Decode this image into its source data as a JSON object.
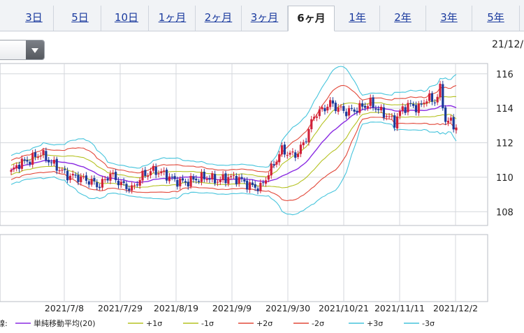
{
  "tabs": [
    {
      "label": "3日",
      "active": false
    },
    {
      "label": "5日",
      "active": false
    },
    {
      "label": "10日",
      "active": false
    },
    {
      "label": "1ヶ月",
      "active": false
    },
    {
      "label": "2ヶ月",
      "active": false
    },
    {
      "label": "3ヶ月",
      "active": false
    },
    {
      "label": "6ヶ月",
      "active": true
    },
    {
      "label": "1年",
      "active": false
    },
    {
      "label": "2年",
      "active": false
    },
    {
      "label": "3年",
      "active": false
    },
    {
      "label": "5年",
      "active": false
    }
  ],
  "header": {
    "date_text": "21/12/"
  },
  "chart_data": {
    "type": "candlestick",
    "ylim": [
      107.2,
      116.6
    ],
    "yticks": [
      108,
      110,
      112,
      114,
      116
    ],
    "x_ticks": [
      "2021/7/8",
      "2021/7/29",
      "2021/8/19",
      "2021/9/9",
      "2021/9/30",
      "2021/10/21",
      "2021/11/11",
      "2021/12/2"
    ],
    "up_color": "#d0213a",
    "down_color": "#1b3a9a",
    "legend": {
      "prefix": "線:",
      "items": [
        {
          "label": "単純移動平均(20)",
          "color": "#8a2be2"
        },
        {
          "label": "+1σ",
          "color": "#b5c222"
        },
        {
          "label": "-1σ",
          "color": "#b5c222"
        },
        {
          "label": "+2σ",
          "color": "#e2483a"
        },
        {
          "label": "-2σ",
          "color": "#e2483a"
        },
        {
          "label": "+3σ",
          "color": "#45c4dc"
        },
        {
          "label": "-3σ",
          "color": "#45c4dc"
        }
      ]
    },
    "close_anchors": [
      [
        0,
        110.3
      ],
      [
        3,
        110.8
      ],
      [
        7,
        111.0
      ],
      [
        11,
        111.4
      ],
      [
        13,
        111.1
      ],
      [
        17,
        110.6
      ],
      [
        21,
        110.1
      ],
      [
        25,
        110.0
      ],
      [
        29,
        109.8
      ],
      [
        33,
        109.5
      ],
      [
        37,
        110.2
      ],
      [
        41,
        109.6
      ],
      [
        45,
        109.3
      ],
      [
        49,
        110.1
      ],
      [
        53,
        110.4
      ],
      [
        57,
        110.2
      ],
      [
        61,
        109.8
      ],
      [
        65,
        109.7
      ],
      [
        69,
        109.9
      ],
      [
        73,
        110.0
      ],
      [
        77,
        109.8
      ],
      [
        81,
        110.0
      ],
      [
        85,
        109.9
      ],
      [
        89,
        109.5
      ],
      [
        93,
        109.4
      ],
      [
        97,
        110.5
      ],
      [
        101,
        111.6
      ],
      [
        104,
        111.3
      ],
      [
        107,
        111.4
      ],
      [
        110,
        112.3
      ],
      [
        113,
        113.6
      ],
      [
        116,
        113.9
      ],
      [
        119,
        114.3
      ],
      [
        122,
        114.0
      ],
      [
        125,
        113.8
      ],
      [
        128,
        113.9
      ],
      [
        131,
        114.1
      ],
      [
        134,
        114.3
      ],
      [
        137,
        113.9
      ],
      [
        140,
        113.6
      ],
      [
        143,
        113.2
      ],
      [
        146,
        114.0
      ],
      [
        149,
        114.2
      ],
      [
        152,
        114.0
      ],
      [
        155,
        114.6
      ],
      [
        158,
        114.4
      ],
      [
        160,
        115.1
      ],
      [
        162,
        113.3
      ],
      [
        164,
        113.2
      ],
      [
        166,
        112.9
      ]
    ]
  }
}
